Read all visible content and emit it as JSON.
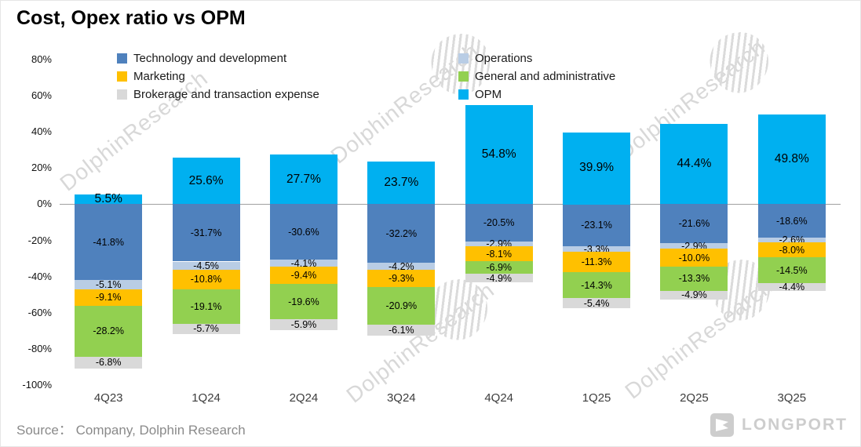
{
  "title": "Cost, Opex ratio vs OPM",
  "source_note": "Source： Company, Dolphin Research",
  "watermark": {
    "text": "DolphinResearch"
  },
  "brand": {
    "name": "LONGPORT"
  },
  "legend": {
    "col1": [
      {
        "label": "Technology and development",
        "color": "#4F81BD"
      },
      {
        "label": "Marketing",
        "color": "#FFC000"
      },
      {
        "label": "Brokerage and transaction expense",
        "color": "#D9D9D9"
      }
    ],
    "col2": [
      {
        "label": "Operations",
        "color": "#B9CDE5"
      },
      {
        "label": "General and administrative",
        "color": "#92D050"
      },
      {
        "label": "OPM",
        "color": "#00B0F0"
      }
    ]
  },
  "chart_data": {
    "type": "bar",
    "stacked": true,
    "title": "Cost, Opex ratio vs OPM",
    "xlabel": "",
    "ylabel": "",
    "ylim": [
      -100,
      80
    ],
    "y_ticks": [
      80,
      60,
      40,
      20,
      0,
      -20,
      -40,
      -60,
      -80,
      -100
    ],
    "y_tick_suffix": "%",
    "grid": false,
    "legend_position": "top",
    "categories": [
      "4Q23",
      "1Q24",
      "2Q24",
      "3Q24",
      "4Q24",
      "1Q25",
      "2Q25",
      "3Q25"
    ],
    "series": [
      {
        "name": "Technology and development",
        "color": "#4F81BD",
        "emphasis": false,
        "values": [
          -41.8,
          -31.7,
          -30.6,
          -32.2,
          -20.5,
          -23.1,
          -21.6,
          -18.6
        ]
      },
      {
        "name": "Operations",
        "color": "#B9CDE5",
        "emphasis": false,
        "values": [
          -5.1,
          -4.5,
          -4.1,
          -4.2,
          -2.9,
          -3.3,
          -2.9,
          -2.6
        ]
      },
      {
        "name": "Marketing",
        "color": "#FFC000",
        "emphasis": false,
        "values": [
          -9.1,
          -10.8,
          -9.4,
          -9.3,
          -8.1,
          -11.3,
          -10.0,
          -8.0
        ]
      },
      {
        "name": "General and administrative",
        "color": "#92D050",
        "emphasis": false,
        "values": [
          -28.2,
          -19.1,
          -19.6,
          -20.9,
          -6.9,
          -14.3,
          -13.3,
          -14.5
        ]
      },
      {
        "name": "Brokerage and transaction expense",
        "color": "#D9D9D9",
        "emphasis": false,
        "values": [
          -6.8,
          -5.7,
          -5.9,
          -6.1,
          -4.9,
          -5.4,
          -4.9,
          -4.4
        ]
      },
      {
        "name": "OPM",
        "color": "#00B0F0",
        "emphasis": true,
        "values": [
          5.5,
          25.6,
          27.7,
          23.7,
          54.8,
          39.9,
          44.4,
          49.8
        ]
      }
    ]
  }
}
